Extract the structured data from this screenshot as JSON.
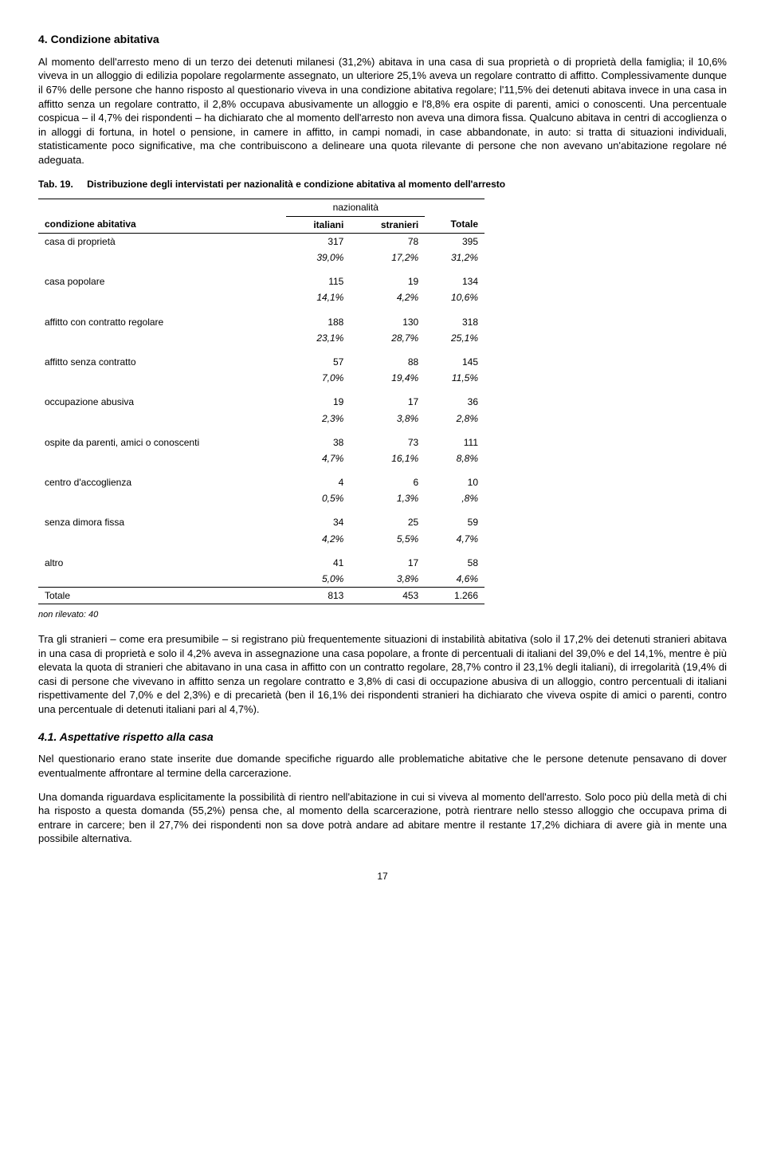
{
  "section": {
    "title": "4. Condizione abitativa"
  },
  "para1": "Al momento dell'arresto meno di un terzo dei detenuti milanesi (31,2%) abitava in una casa di sua proprietà o di proprietà della famiglia; il 10,6% viveva in un alloggio di edilizia popolare regolarmente assegnato, un ulteriore 25,1% aveva un regolare contratto di affitto. Complessivamente dunque il 67% delle persone che hanno risposto al questionario viveva in una condizione abitativa regolare; l'11,5% dei detenuti abitava invece in una casa in affitto senza un regolare contratto, il 2,8% occupava abusivamente un alloggio e l'8,8% era ospite di parenti, amici o conoscenti. Una percentuale cospicua – il 4,7% dei rispondenti – ha dichiarato che al momento dell'arresto non aveva una dimora fissa. Qualcuno abitava in centri di accoglienza o in alloggi di fortuna, in hotel o pensione, in camere in affitto, in campi nomadi, in case abbandonate, in auto: si tratta di situazioni individuali, statisticamente poco significative, ma che contribuiscono a delineare una quota rilevante di persone che non avevano un'abitazione regolare né adeguata.",
  "tab19": {
    "num": "Tab. 19.",
    "title": "Distribuzione degli intervistati per nazionalità e condizione abitativa al momento dell'arresto",
    "header_group": "nazionalità",
    "col_label": "condizione abitativa",
    "col_it": "italiani",
    "col_str": "stranieri",
    "col_tot": "Totale",
    "rows": [
      {
        "label": "casa di proprietà",
        "it_n": "317",
        "str_n": "78",
        "tot_n": "395",
        "it_p": "39,0%",
        "str_p": "17,2%",
        "tot_p": "31,2%"
      },
      {
        "label": "casa popolare",
        "it_n": "115",
        "str_n": "19",
        "tot_n": "134",
        "it_p": "14,1%",
        "str_p": "4,2%",
        "tot_p": "10,6%"
      },
      {
        "label": "affitto con contratto regolare",
        "it_n": "188",
        "str_n": "130",
        "tot_n": "318",
        "it_p": "23,1%",
        "str_p": "28,7%",
        "tot_p": "25,1%"
      },
      {
        "label": "affitto senza contratto",
        "it_n": "57",
        "str_n": "88",
        "tot_n": "145",
        "it_p": "7,0%",
        "str_p": "19,4%",
        "tot_p": "11,5%"
      },
      {
        "label": "occupazione abusiva",
        "it_n": "19",
        "str_n": "17",
        "tot_n": "36",
        "it_p": "2,3%",
        "str_p": "3,8%",
        "tot_p": "2,8%"
      },
      {
        "label": "ospite da parenti, amici o conoscenti",
        "it_n": "38",
        "str_n": "73",
        "tot_n": "111",
        "it_p": "4,7%",
        "str_p": "16,1%",
        "tot_p": "8,8%"
      },
      {
        "label": "centro d'accoglienza",
        "it_n": "4",
        "str_n": "6",
        "tot_n": "10",
        "it_p": "0,5%",
        "str_p": "1,3%",
        "tot_p": ",8%"
      },
      {
        "label": "senza dimora fissa",
        "it_n": "34",
        "str_n": "25",
        "tot_n": "59",
        "it_p": "4,2%",
        "str_p": "5,5%",
        "tot_p": "4,7%"
      },
      {
        "label": "altro",
        "it_n": "41",
        "str_n": "17",
        "tot_n": "58",
        "it_p": "5,0%",
        "str_p": "3,8%",
        "tot_p": "4,6%"
      }
    ],
    "total": {
      "label": "Totale",
      "it": "813",
      "str": "453",
      "tot": "1.266"
    },
    "note": "non rilevato: 40"
  },
  "para2": "Tra gli stranieri – come era presumibile – si registrano più frequentemente situazioni di instabilità abitativa (solo il 17,2% dei detenuti stranieri abitava in una casa di proprietà e solo il 4,2% aveva in assegnazione una casa popolare, a fronte di percentuali di italiani del 39,0% e del 14,1%, mentre è più elevata la quota di stranieri che abitavano in una casa in affitto con un contratto regolare, 28,7% contro il 23,1% degli italiani), di irregolarità (19,4% di casi di persone che vivevano in affitto senza un regolare contratto e 3,8% di casi di occupazione abusiva di un alloggio, contro percentuali di italiani rispettivamente del 7,0% e del 2,3%) e di precarietà (ben il 16,1% dei rispondenti stranieri ha dichiarato che viveva ospite di amici o parenti, contro una percentuale di detenuti italiani pari al 4,7%).",
  "subsection": {
    "title": "4.1. Aspettative rispetto alla casa"
  },
  "para3": "Nel questionario erano state inserite due domande specifiche riguardo alle problematiche abitative che le persone detenute pensavano di dover eventualmente affrontare al termine della carcerazione.",
  "para4": "Una domanda riguardava esplicitamente la possibilità di rientro nell'abitazione in cui si viveva al momento dell'arresto. Solo poco più della metà di chi ha risposto a questa domanda (55,2%) pensa che, al momento della scarcerazione, potrà rientrare nello stesso alloggio che occupava prima di entrare in carcere; ben il 27,7% dei rispondenti non sa dove potrà andare ad abitare mentre il restante 17,2% dichiara di avere già in mente una possibile alternativa.",
  "page": "17"
}
